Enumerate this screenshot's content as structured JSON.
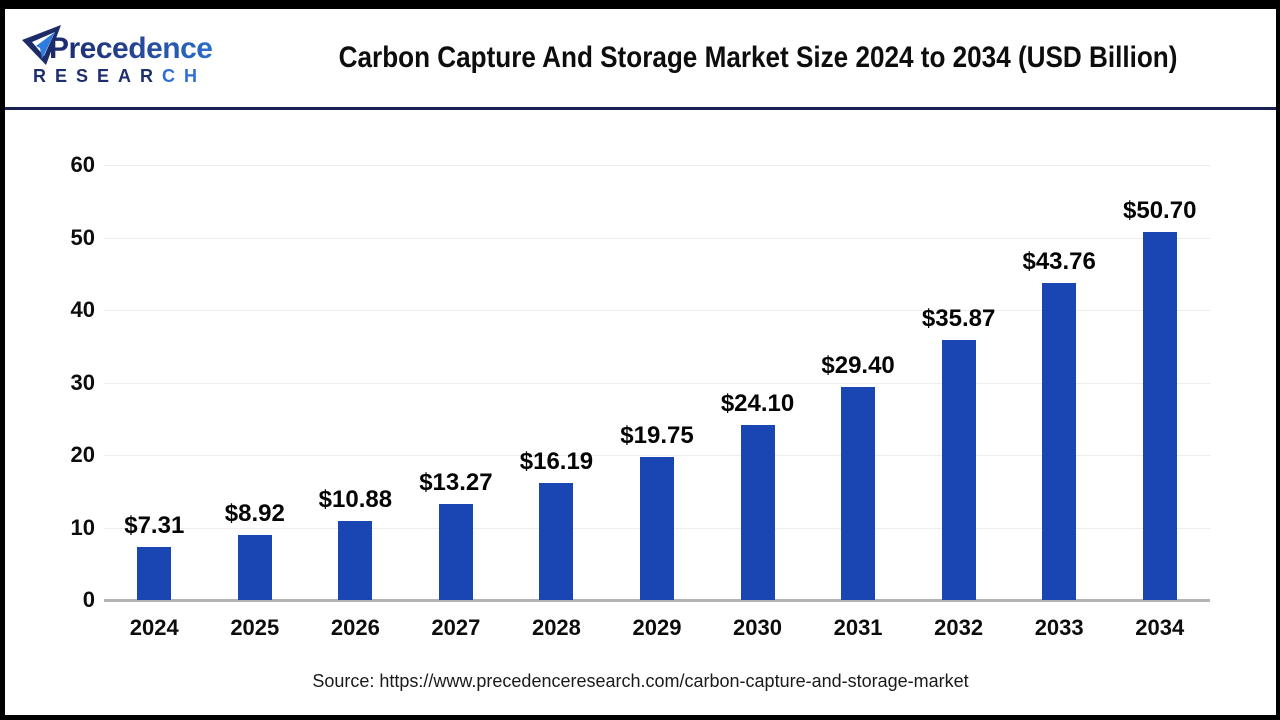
{
  "header": {
    "logo": {
      "name": "Precedence",
      "sub_dark": "RESEAR",
      "sub_light": "CH"
    },
    "title": "Carbon Capture And Storage Market Size 2024 to 2034 (USD Billion)"
  },
  "chart_data": {
    "type": "bar",
    "title": "Carbon Capture And Storage Market Size 2024 to 2034 (USD Billion)",
    "categories": [
      "2024",
      "2025",
      "2026",
      "2027",
      "2028",
      "2029",
      "2030",
      "2031",
      "2032",
      "2033",
      "2034"
    ],
    "values": [
      7.31,
      8.92,
      10.88,
      13.27,
      16.19,
      19.75,
      24.1,
      29.4,
      35.87,
      43.76,
      50.7
    ],
    "value_labels": [
      "$7.31",
      "$8.92",
      "$10.88",
      "$13.27",
      "$16.19",
      "$19.75",
      "$24.10",
      "$29.40",
      "$35.87",
      "$43.76",
      "$50.70"
    ],
    "xlabel": "",
    "ylabel": "",
    "ylim": [
      0,
      60
    ],
    "yticks": [
      0,
      10,
      20,
      30,
      40,
      50,
      60
    ],
    "grid": true,
    "legend_position": "none",
    "bar_color": "#1a46b4",
    "gridline_color": "#ededed",
    "axis_line_color": "#b3b3b3"
  },
  "footer": {
    "source": "Source: https://www.precedenceresearch.com/carbon-capture-and-storage-market"
  }
}
